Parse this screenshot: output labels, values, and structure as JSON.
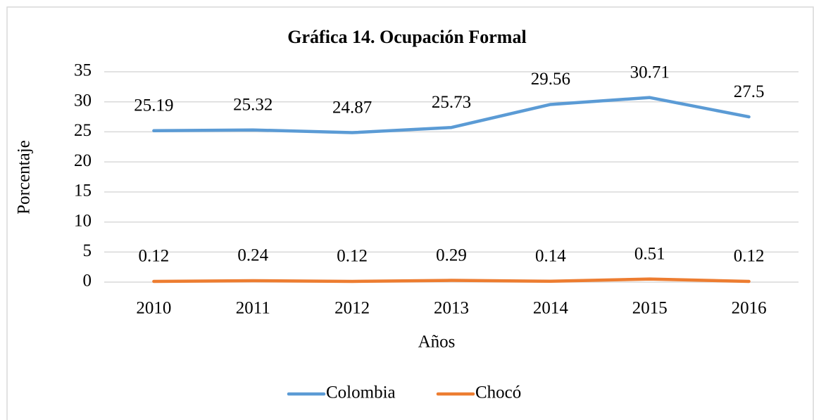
{
  "chart_data": {
    "type": "line",
    "title": "Gráfica 14. Ocupación Formal",
    "x_label": "Años",
    "y_label": "Porcentaje",
    "categories": [
      "2010",
      "2011",
      "2012",
      "2013",
      "2014",
      "2015",
      "2016"
    ],
    "series": [
      {
        "name": "Colombia",
        "color": "#5b9bd5",
        "values": [
          25.19,
          25.32,
          24.87,
          25.73,
          29.56,
          30.71,
          27.5
        ]
      },
      {
        "name": "Chocó",
        "color": "#ed7d31",
        "values": [
          0.12,
          0.24,
          0.12,
          0.29,
          0.14,
          0.51,
          0.12
        ]
      }
    ],
    "ylim": [
      0,
      35
    ],
    "yticks": [
      0,
      5,
      10,
      15,
      20,
      25,
      30,
      35
    ],
    "grid": true,
    "legend": "bottom"
  }
}
